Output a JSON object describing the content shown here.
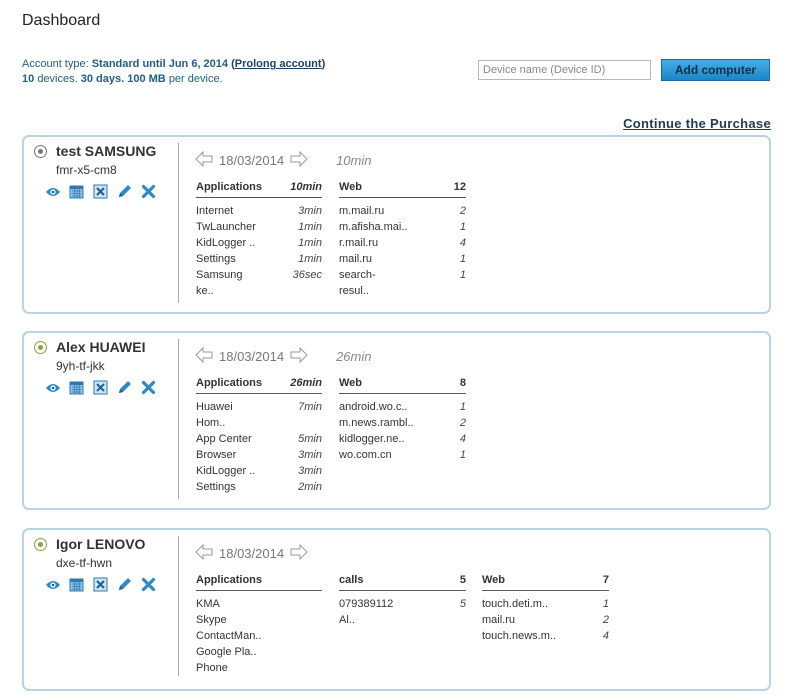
{
  "page": {
    "title": "Dashboard"
  },
  "account": {
    "type_label": "Account type:",
    "type_value": "Standard until Jun 6, 2014",
    "prolong_open": "(",
    "prolong_link": "Prolong account",
    "prolong_close": ")",
    "devices": "10",
    "devices_label": "devices.",
    "days": "30 days.",
    "mb": "100 MB",
    "per_device": "per device."
  },
  "add_computer": {
    "placeholder": "Device name (Device ID)",
    "button": "Add computer"
  },
  "continue_link": "Continue the Purchase",
  "icons": [
    "eye-icon",
    "calendar-icon",
    "delete-box-icon",
    "pencil-icon",
    "close-icon"
  ],
  "devices": [
    {
      "name": "test SAMSUNG",
      "id": "fmr-x5-cm8",
      "online": false,
      "date": "18/03/2014",
      "duration": "10min",
      "applications": {
        "header": "Applications",
        "total": "10min",
        "rows": [
          [
            "Internet",
            "3min"
          ],
          [
            "TwLauncher",
            "1min"
          ],
          [
            "KidLogger ..",
            "1min"
          ],
          [
            "Settings",
            "1min"
          ],
          [
            "Samsung",
            "36sec"
          ],
          [
            "ke..",
            ""
          ]
        ]
      },
      "web": {
        "header": "Web",
        "total": "12",
        "rows": [
          [
            "m.mail.ru",
            "2"
          ],
          [
            "m.afisha.mai..",
            "1"
          ],
          [
            "r.mail.ru",
            "4"
          ],
          [
            "mail.ru",
            "1"
          ],
          [
            "search-",
            "1"
          ],
          [
            "resul..",
            ""
          ]
        ]
      }
    },
    {
      "name": "Alex HUAWEI",
      "id": "9yh-tf-jkk",
      "online": true,
      "date": "18/03/2014",
      "duration": "26min",
      "applications": {
        "header": "Applications",
        "total": "26min",
        "rows": [
          [
            "Huawei",
            "7min"
          ],
          [
            "Hom..",
            ""
          ],
          [
            "App Center",
            "5min"
          ],
          [
            "Browser",
            "3min"
          ],
          [
            "KidLogger ..",
            "3min"
          ],
          [
            "Settings",
            "2min"
          ]
        ]
      },
      "web": {
        "header": "Web",
        "total": "8",
        "rows": [
          [
            "android.wo.c..",
            "1"
          ],
          [
            "m.news.rambl..",
            "2"
          ],
          [
            "kidlogger.ne..",
            "4"
          ],
          [
            "wo.com.cn",
            "1"
          ]
        ]
      }
    },
    {
      "name": "Igor LENOVO",
      "id": "dxe-tf-hwn",
      "online": true,
      "date": "18/03/2014",
      "applications": {
        "header": "Applications",
        "rows": [
          [
            "KMA"
          ],
          [
            "Skype"
          ],
          [
            "ContactMan.."
          ],
          [
            "Google Pla.."
          ],
          [
            "Phone"
          ]
        ]
      },
      "calls": {
        "header": "calls",
        "total": "5",
        "rows": [
          [
            "079389112",
            "5"
          ],
          [
            "Al..",
            ""
          ]
        ]
      },
      "web": {
        "header": "Web",
        "total": "7",
        "rows": [
          [
            "touch.deti.m..",
            "1"
          ],
          [
            "mail.ru",
            "2"
          ],
          [
            "touch.news.m..",
            "4"
          ]
        ]
      }
    }
  ]
}
